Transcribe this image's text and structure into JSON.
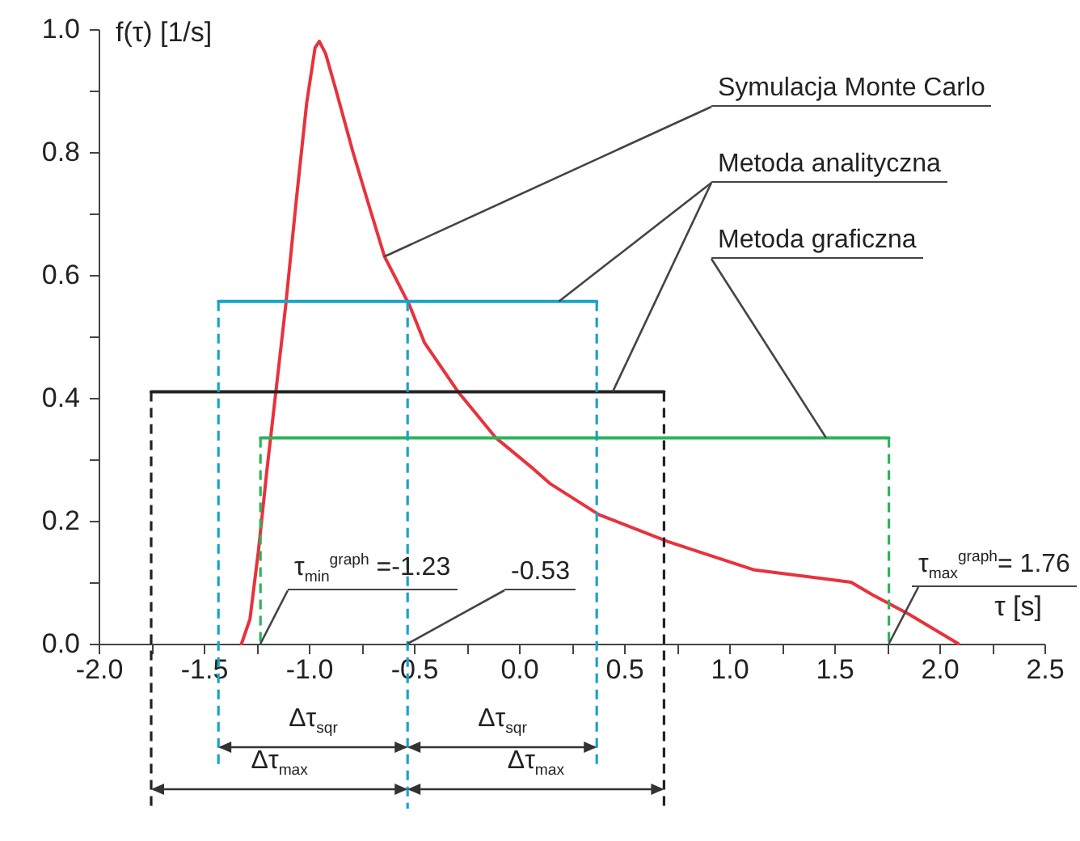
{
  "chart_data": {
    "type": "line",
    "xlabel": "τ [s]",
    "ylabel": "f(τ) [1/s]",
    "xlim": [
      -2.0,
      2.5
    ],
    "ylim": [
      0,
      1.0
    ],
    "xticks": [
      {
        "value": -2,
        "label": "-2.0"
      },
      {
        "value": -1.75,
        "label": null
      },
      {
        "value": -1.5,
        "label": "-1.5"
      },
      {
        "value": -1.25,
        "label": null
      },
      {
        "value": -1,
        "label": "-1.0"
      },
      {
        "value": -0.75,
        "label": null
      },
      {
        "value": -0.5,
        "label": "-0.5"
      },
      {
        "value": -0.25,
        "label": null
      },
      {
        "value": 0,
        "label": "0.0"
      },
      {
        "value": 0.25,
        "label": null
      },
      {
        "value": 0.5,
        "label": "0.5"
      },
      {
        "value": 0.75,
        "label": null
      },
      {
        "value": 1,
        "label": "1.0"
      },
      {
        "value": 1.25,
        "label": null
      },
      {
        "value": 1.5,
        "label": "1.5"
      },
      {
        "value": 1.75,
        "label": null
      },
      {
        "value": 2,
        "label": "2.0"
      },
      {
        "value": 2.25,
        "label": null
      },
      {
        "value": 2.5,
        "label": "2.5"
      }
    ],
    "yticks": [
      {
        "value": 0,
        "label": "0.0"
      },
      {
        "value": 0.1,
        "label": null
      },
      {
        "value": 0.2,
        "label": "0.2"
      },
      {
        "value": 0.3,
        "label": null
      },
      {
        "value": 0.4,
        "label": "0.4"
      },
      {
        "value": 0.5,
        "label": null
      },
      {
        "value": 0.6,
        "label": "0.6"
      },
      {
        "value": 0.7,
        "label": null
      },
      {
        "value": 0.8,
        "label": "0.8"
      },
      {
        "value": 0.9,
        "label": null
      },
      {
        "value": 1,
        "label": "1.0"
      }
    ],
    "series": [
      {
        "name": "Symulacja Monte Carlo",
        "color": "#e8323c",
        "x": [
          -1.32,
          -1.28,
          -1.24,
          -1.2,
          -1.16,
          -1.11,
          -1.06,
          -1.01,
          -0.97,
          -0.95,
          -0.92,
          -0.87,
          -0.79,
          -0.72,
          -0.64,
          -0.52,
          -0.45,
          -0.29,
          -0.11,
          0.07,
          0.15,
          0.38,
          0.71,
          1.12,
          1.58,
          1.68,
          1.86,
          2.09
        ],
        "values": [
          0,
          0.04,
          0.15,
          0.28,
          0.4,
          0.55,
          0.72,
          0.88,
          0.97,
          0.98,
          0.96,
          0.9,
          0.8,
          0.72,
          0.63,
          0.55,
          0.49,
          0.41,
          0.335,
          0.284,
          0.26,
          0.21,
          0.166,
          0.12,
          0.1,
          0.08,
          0.047,
          0
        ]
      },
      {
        "name": "Metoda analityczna",
        "color": "#1aa3c8",
        "x": [
          -1.43,
          0.37
        ],
        "values": [
          0.557,
          0.557
        ]
      },
      {
        "color": "#222222",
        "x": [
          -1.75,
          0.69
        ],
        "values": [
          0.41,
          0.41
        ]
      },
      {
        "name": "Metoda graficzna",
        "color": "#2db35a",
        "x": [
          -1.23,
          1.76
        ],
        "values": [
          0.335,
          0.335
        ]
      }
    ],
    "ref_lines": [
      {
        "axis": "x",
        "value": -1.43,
        "color": "#1aa3c8",
        "line_style": "dashed"
      },
      {
        "axis": "x",
        "value": -0.53,
        "color": "#1aa3c8",
        "line_style": "dashed"
      },
      {
        "axis": "x",
        "value": 0.37,
        "color": "#1aa3c8",
        "line_style": "dashed"
      },
      {
        "axis": "x",
        "value": -1.75,
        "color": "#222222",
        "line_style": "dashed"
      },
      {
        "axis": "x",
        "value": 0.69,
        "color": "#222222",
        "line_style": "dashed"
      },
      {
        "axis": "x",
        "value": -1.23,
        "color": "#2db35a",
        "line_style": "dashed"
      },
      {
        "axis": "x",
        "value": 1.76,
        "color": "#2db35a",
        "line_style": "dashed"
      }
    ],
    "annotations": [
      "τ$_{min}$$^{graph}$ =-1.23",
      {
        "text": "-0.53",
        "x": -0.53,
        "y": 0
      },
      "τ$_{max}$$^{graph}$= 1.76",
      "Δτ$_{sqr}$",
      "Δτ$_{sqr}$",
      "Δτ$_{max}$",
      "Δτ$_{max}$"
    ]
  }
}
